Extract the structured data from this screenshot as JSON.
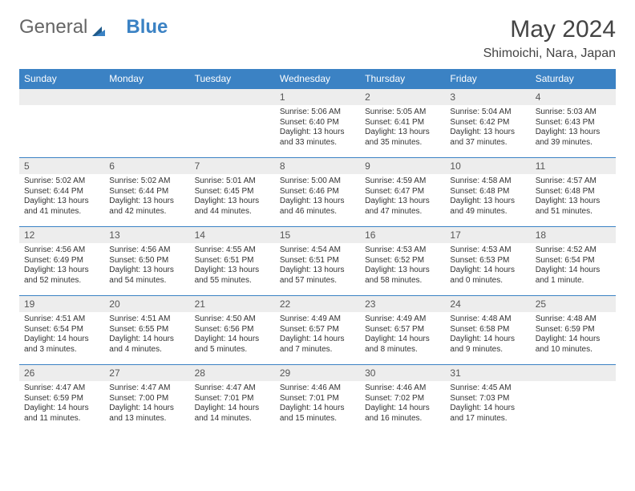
{
  "brand": {
    "part1": "General",
    "part2": "Blue"
  },
  "logo_colors": {
    "sail_dark": "#1f5a8a",
    "sail_light": "#3b82c4"
  },
  "title": "May 2024",
  "location": "Shimoichi, Nara, Japan",
  "theme": {
    "header_bg": "#3b82c4",
    "header_fg": "#ffffff",
    "daynum_bg": "#ededed",
    "rule_color": "#3b82c4",
    "body_bg": "#ffffff",
    "text_color": "#333333"
  },
  "weekdays": [
    "Sunday",
    "Monday",
    "Tuesday",
    "Wednesday",
    "Thursday",
    "Friday",
    "Saturday"
  ],
  "font": {
    "title_pt": 30,
    "location_pt": 16,
    "weekday_pt": 12,
    "daynum_pt": 12,
    "body_pt": 10
  },
  "weeks": [
    [
      {
        "blank": true
      },
      {
        "blank": true
      },
      {
        "blank": true
      },
      {
        "day": "1",
        "sunrise": "5:06 AM",
        "sunset": "6:40 PM",
        "daylight": "13 hours and 33 minutes."
      },
      {
        "day": "2",
        "sunrise": "5:05 AM",
        "sunset": "6:41 PM",
        "daylight": "13 hours and 35 minutes."
      },
      {
        "day": "3",
        "sunrise": "5:04 AM",
        "sunset": "6:42 PM",
        "daylight": "13 hours and 37 minutes."
      },
      {
        "day": "4",
        "sunrise": "5:03 AM",
        "sunset": "6:43 PM",
        "daylight": "13 hours and 39 minutes."
      }
    ],
    [
      {
        "day": "5",
        "sunrise": "5:02 AM",
        "sunset": "6:44 PM",
        "daylight": "13 hours and 41 minutes."
      },
      {
        "day": "6",
        "sunrise": "5:02 AM",
        "sunset": "6:44 PM",
        "daylight": "13 hours and 42 minutes."
      },
      {
        "day": "7",
        "sunrise": "5:01 AM",
        "sunset": "6:45 PM",
        "daylight": "13 hours and 44 minutes."
      },
      {
        "day": "8",
        "sunrise": "5:00 AM",
        "sunset": "6:46 PM",
        "daylight": "13 hours and 46 minutes."
      },
      {
        "day": "9",
        "sunrise": "4:59 AM",
        "sunset": "6:47 PM",
        "daylight": "13 hours and 47 minutes."
      },
      {
        "day": "10",
        "sunrise": "4:58 AM",
        "sunset": "6:48 PM",
        "daylight": "13 hours and 49 minutes."
      },
      {
        "day": "11",
        "sunrise": "4:57 AM",
        "sunset": "6:48 PM",
        "daylight": "13 hours and 51 minutes."
      }
    ],
    [
      {
        "day": "12",
        "sunrise": "4:56 AM",
        "sunset": "6:49 PM",
        "daylight": "13 hours and 52 minutes."
      },
      {
        "day": "13",
        "sunrise": "4:56 AM",
        "sunset": "6:50 PM",
        "daylight": "13 hours and 54 minutes."
      },
      {
        "day": "14",
        "sunrise": "4:55 AM",
        "sunset": "6:51 PM",
        "daylight": "13 hours and 55 minutes."
      },
      {
        "day": "15",
        "sunrise": "4:54 AM",
        "sunset": "6:51 PM",
        "daylight": "13 hours and 57 minutes."
      },
      {
        "day": "16",
        "sunrise": "4:53 AM",
        "sunset": "6:52 PM",
        "daylight": "13 hours and 58 minutes."
      },
      {
        "day": "17",
        "sunrise": "4:53 AM",
        "sunset": "6:53 PM",
        "daylight": "14 hours and 0 minutes."
      },
      {
        "day": "18",
        "sunrise": "4:52 AM",
        "sunset": "6:54 PM",
        "daylight": "14 hours and 1 minute."
      }
    ],
    [
      {
        "day": "19",
        "sunrise": "4:51 AM",
        "sunset": "6:54 PM",
        "daylight": "14 hours and 3 minutes."
      },
      {
        "day": "20",
        "sunrise": "4:51 AM",
        "sunset": "6:55 PM",
        "daylight": "14 hours and 4 minutes."
      },
      {
        "day": "21",
        "sunrise": "4:50 AM",
        "sunset": "6:56 PM",
        "daylight": "14 hours and 5 minutes."
      },
      {
        "day": "22",
        "sunrise": "4:49 AM",
        "sunset": "6:57 PM",
        "daylight": "14 hours and 7 minutes."
      },
      {
        "day": "23",
        "sunrise": "4:49 AM",
        "sunset": "6:57 PM",
        "daylight": "14 hours and 8 minutes."
      },
      {
        "day": "24",
        "sunrise": "4:48 AM",
        "sunset": "6:58 PM",
        "daylight": "14 hours and 9 minutes."
      },
      {
        "day": "25",
        "sunrise": "4:48 AM",
        "sunset": "6:59 PM",
        "daylight": "14 hours and 10 minutes."
      }
    ],
    [
      {
        "day": "26",
        "sunrise": "4:47 AM",
        "sunset": "6:59 PM",
        "daylight": "14 hours and 11 minutes."
      },
      {
        "day": "27",
        "sunrise": "4:47 AM",
        "sunset": "7:00 PM",
        "daylight": "14 hours and 13 minutes."
      },
      {
        "day": "28",
        "sunrise": "4:47 AM",
        "sunset": "7:01 PM",
        "daylight": "14 hours and 14 minutes."
      },
      {
        "day": "29",
        "sunrise": "4:46 AM",
        "sunset": "7:01 PM",
        "daylight": "14 hours and 15 minutes."
      },
      {
        "day": "30",
        "sunrise": "4:46 AM",
        "sunset": "7:02 PM",
        "daylight": "14 hours and 16 minutes."
      },
      {
        "day": "31",
        "sunrise": "4:45 AM",
        "sunset": "7:03 PM",
        "daylight": "14 hours and 17 minutes."
      },
      {
        "blank": true
      }
    ]
  ],
  "labels": {
    "sunrise_prefix": "Sunrise: ",
    "sunset_prefix": "Sunset: ",
    "daylight_prefix": "Daylight: "
  }
}
